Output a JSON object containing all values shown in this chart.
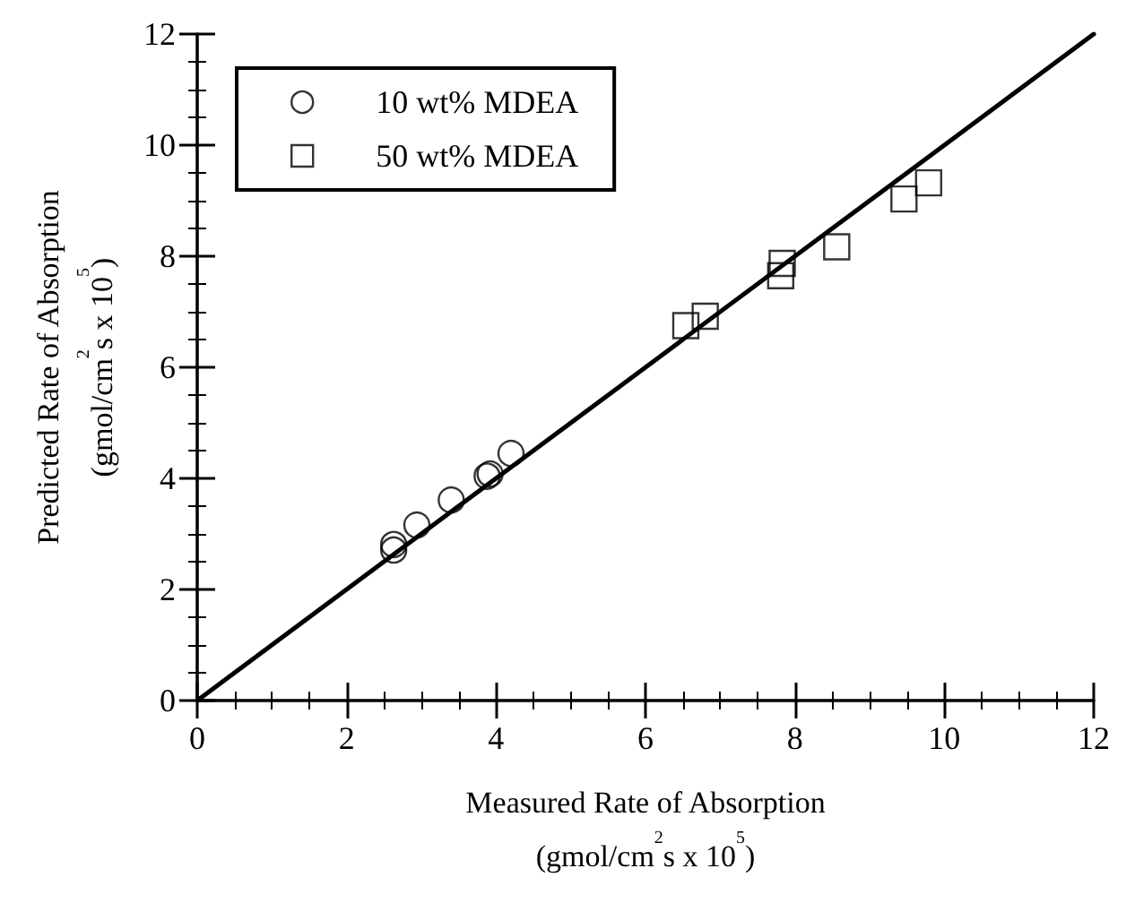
{
  "chart_data": {
    "type": "scatter",
    "xlabel": "Measured Rate of Absorption\n(gmol/cm$^{2}$s x 10$^{5}$)",
    "ylabel": "Predicted Rate of Absorption\n(gmol/cm$^{2}$s x 10$^{5}$)",
    "xlim": [
      0,
      12
    ],
    "xticks": [
      0,
      2,
      4,
      6,
      8,
      10,
      12
    ],
    "ylim": [
      0,
      12
    ],
    "yticks": [
      0,
      2,
      4,
      6,
      8,
      10,
      12
    ],
    "grid": false,
    "legend": "top left",
    "series": [
      {
        "name": "10 wt% MDEA",
        "color": "#000000",
        "marker": "circle",
        "x": [
          2.63,
          2.63,
          2.94,
          3.4,
          3.88,
          3.92,
          4.2
        ],
        "values": [
          2.81,
          2.71,
          3.16,
          3.61,
          4.04,
          4.08,
          4.45
        ]
      },
      {
        "name": "50 wt% MDEA",
        "color": "#000000",
        "marker": "square",
        "x": [
          6.54,
          6.8,
          7.81,
          7.83,
          8.56,
          9.46,
          9.79
        ],
        "values": [
          6.75,
          6.92,
          7.65,
          7.87,
          8.17,
          9.03,
          9.32
        ]
      },
      {
        "type": "line",
        "color": "#000000",
        "marker": "none",
        "line_style": "solid",
        "x": [
          0,
          12
        ],
        "values": [
          0,
          12
        ]
      }
    ]
  }
}
